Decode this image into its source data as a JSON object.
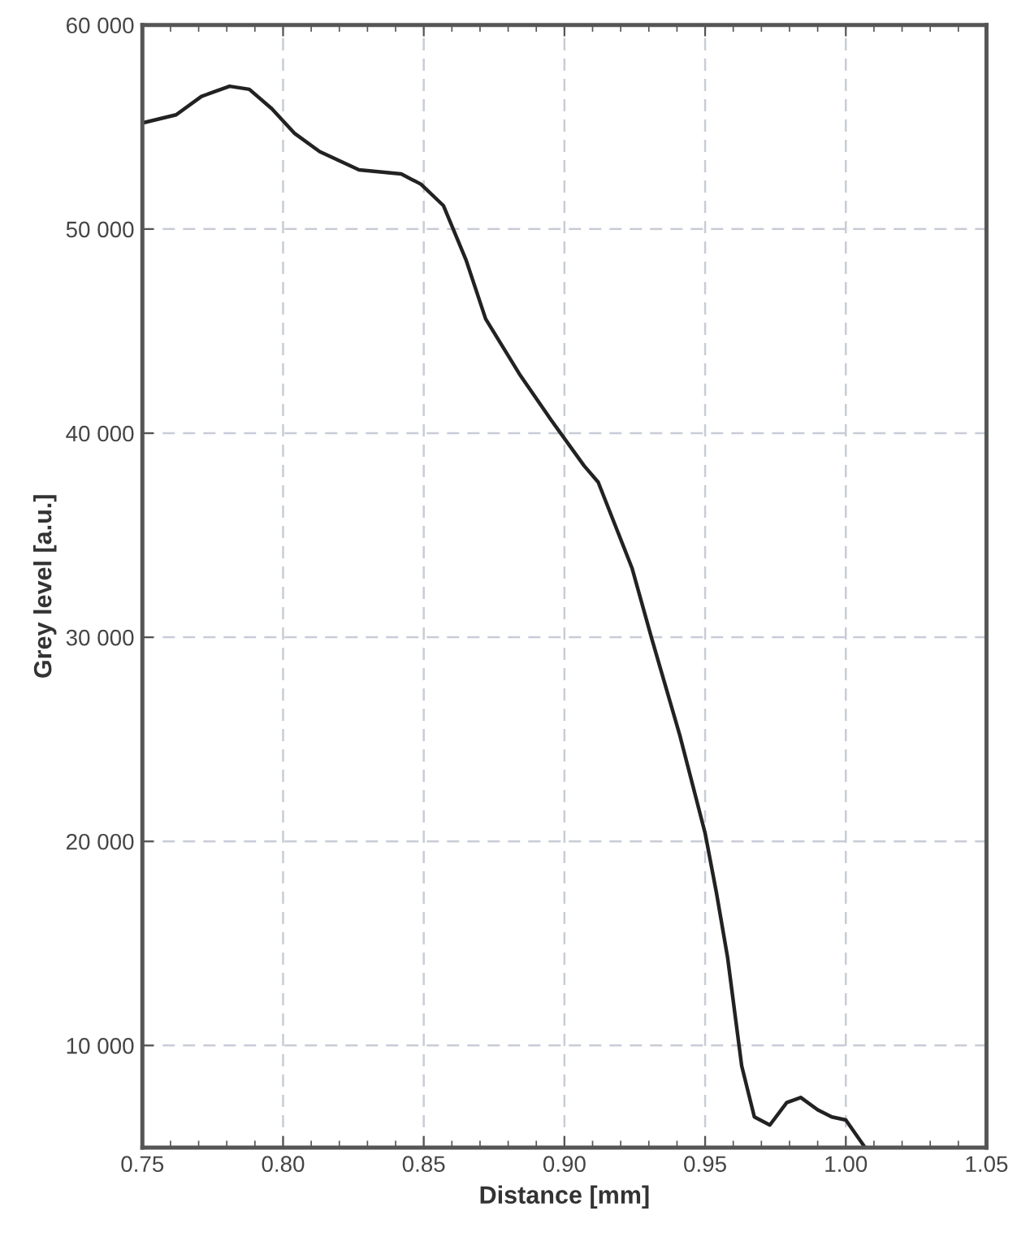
{
  "chart_data": {
    "type": "line",
    "xlabel": "Distance [mm]",
    "ylabel": "Grey level [a.u.]",
    "xlim": [
      0.75,
      1.05
    ],
    "ylim": [
      5000,
      60000
    ],
    "xticks": [
      {
        "value": 0.75,
        "label": "0.75"
      },
      {
        "value": 0.8,
        "label": "0.80"
      },
      {
        "value": 0.85,
        "label": "0.85"
      },
      {
        "value": 0.9,
        "label": "0.90"
      },
      {
        "value": 0.95,
        "label": "0.95"
      },
      {
        "value": 1.0,
        "label": "1.00"
      },
      {
        "value": 1.05,
        "label": "1.05"
      }
    ],
    "yticks": [
      {
        "value": 10000,
        "label": "10 000"
      },
      {
        "value": 20000,
        "label": "20 000"
      },
      {
        "value": 30000,
        "label": "30 000"
      },
      {
        "value": 40000,
        "label": "40 000"
      },
      {
        "value": 50000,
        "label": "50 000"
      },
      {
        "value": 60000,
        "label": "60 000"
      }
    ],
    "grid": true,
    "marker": "none",
    "line_style": "solid",
    "series": [
      {
        "color": "#222222",
        "x": [
          0.75,
          0.762,
          0.771,
          0.781,
          0.788,
          0.796,
          0.804,
          0.813,
          0.827,
          0.842,
          0.849,
          0.857,
          0.865,
          0.872,
          0.884,
          0.895,
          0.907,
          0.912,
          0.924,
          0.931,
          0.941,
          0.95,
          0.954,
          0.958,
          0.963,
          0.9675,
          0.973,
          0.979,
          0.984,
          0.99,
          0.995,
          1.0,
          1.0066
        ],
        "values": [
          55200,
          55600,
          56500,
          57000,
          56850,
          55900,
          54700,
          53800,
          52900,
          52700,
          52200,
          51150,
          48500,
          45600,
          42900,
          40700,
          38400,
          37600,
          33400,
          29950,
          25200,
          20400,
          17500,
          14300,
          9000,
          6500,
          6100,
          7200,
          7450,
          6850,
          6500,
          6350,
          5050
        ]
      }
    ]
  }
}
